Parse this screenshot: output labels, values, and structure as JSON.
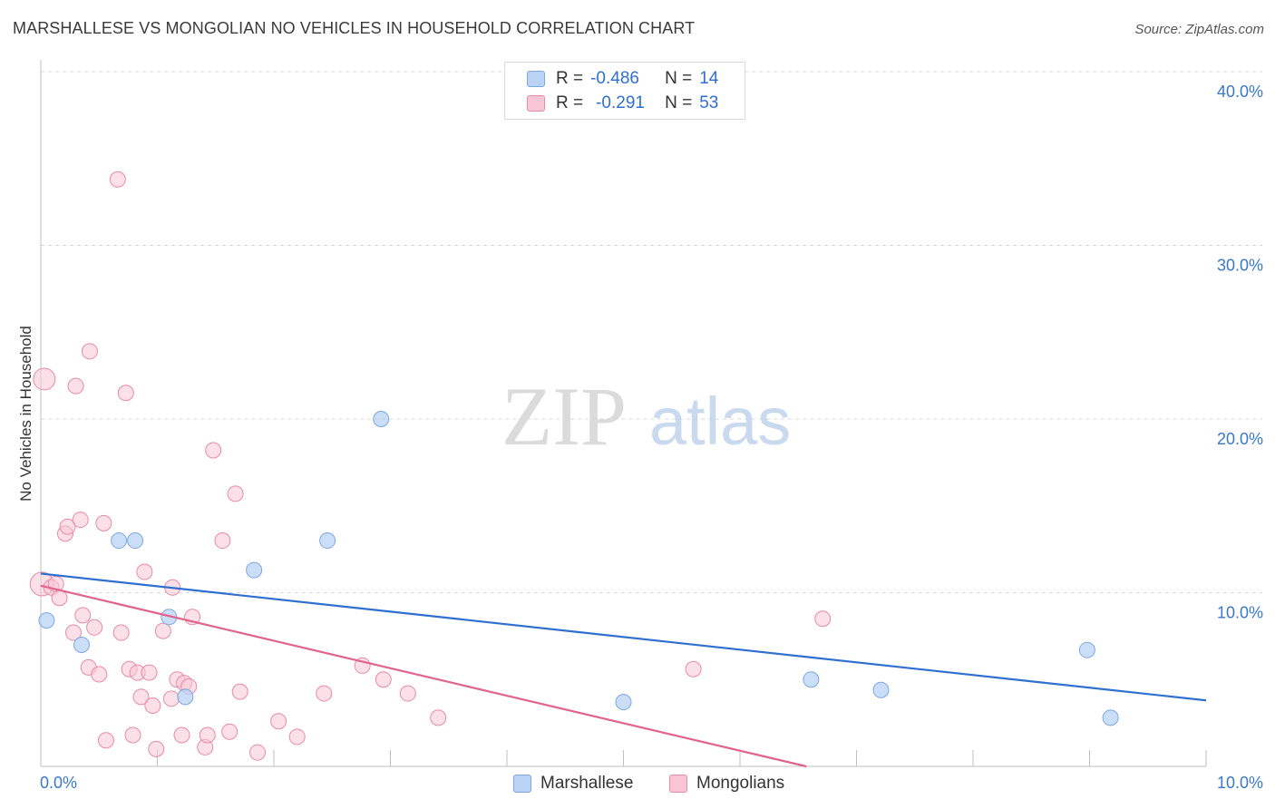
{
  "title": "MARSHALLESE VS MONGOLIAN NO VEHICLES IN HOUSEHOLD CORRELATION CHART",
  "source": "Source: ZipAtlas.com",
  "watermark": {
    "zip": "ZIP",
    "atlas": "atlas"
  },
  "legend": {
    "marshallese": {
      "r_label": "R =",
      "r_value": "-0.486",
      "n_label": "N =",
      "n_value": "14"
    },
    "mongolians": {
      "r_label": "R =",
      "r_value": "-0.291",
      "n_label": "N =",
      "n_value": "53"
    }
  },
  "bottom_legend": {
    "marshallese": "Marshallese",
    "mongolians": "Mongolians"
  },
  "colors": {
    "marshallese_fill": "#b9d3f5",
    "marshallese_stroke": "#7ea8e0",
    "marshallese_line": "#2f6fd0",
    "mongolians_fill": "#f8c6d5",
    "mongolians_stroke": "#e98aa8",
    "mongolians_line": "#e0648d",
    "tick_text": "#3a78c9",
    "grid": "#d8d8d8"
  },
  "chart_data": {
    "type": "scatter",
    "title": "MARSHALLESE VS MONGOLIAN NO VEHICLES IN HOUSEHOLD CORRELATION CHART",
    "xlabel": "",
    "ylabel": "No Vehicles in Household",
    "xlim": [
      0,
      10
    ],
    "ylim": [
      0,
      40
    ],
    "x_tick_labels": [
      "0.0%",
      "10.0%"
    ],
    "y_ticks": [
      10,
      20,
      30,
      40
    ],
    "y_tick_labels": [
      "10.0%",
      "20.0%",
      "30.0%",
      "40.0%"
    ],
    "grid": "horizontal dashed",
    "series": [
      {
        "name": "Marshallese",
        "R": -0.486,
        "N": 14,
        "points": [
          {
            "x": 0.05,
            "y": 8.4
          },
          {
            "x": 0.35,
            "y": 7.0
          },
          {
            "x": 0.67,
            "y": 13.0
          },
          {
            "x": 0.81,
            "y": 13.0
          },
          {
            "x": 1.1,
            "y": 8.6
          },
          {
            "x": 1.24,
            "y": 4.0
          },
          {
            "x": 1.83,
            "y": 11.3
          },
          {
            "x": 2.46,
            "y": 13.0
          },
          {
            "x": 2.92,
            "y": 20.0
          },
          {
            "x": 5.0,
            "y": 3.7
          },
          {
            "x": 6.61,
            "y": 5.0
          },
          {
            "x": 7.21,
            "y": 4.4
          },
          {
            "x": 8.98,
            "y": 6.7
          },
          {
            "x": 9.18,
            "y": 2.8
          }
        ],
        "trend": {
          "x": [
            0,
            10
          ],
          "y": [
            11.1,
            3.8
          ]
        }
      },
      {
        "name": "Mongolians",
        "R": -0.291,
        "N": 53,
        "points": [
          {
            "x": 0.03,
            "y": 22.3
          },
          {
            "x": 0.01,
            "y": 10.5
          },
          {
            "x": 0.09,
            "y": 10.3
          },
          {
            "x": 0.13,
            "y": 10.5
          },
          {
            "x": 0.16,
            "y": 9.7
          },
          {
            "x": 0.21,
            "y": 13.4
          },
          {
            "x": 0.23,
            "y": 13.8
          },
          {
            "x": 0.28,
            "y": 7.7
          },
          {
            "x": 0.3,
            "y": 21.9
          },
          {
            "x": 0.34,
            "y": 14.2
          },
          {
            "x": 0.36,
            "y": 8.7
          },
          {
            "x": 0.41,
            "y": 5.7
          },
          {
            "x": 0.42,
            "y": 23.9
          },
          {
            "x": 0.46,
            "y": 8.0
          },
          {
            "x": 0.5,
            "y": 5.3
          },
          {
            "x": 0.54,
            "y": 14.0
          },
          {
            "x": 0.56,
            "y": 1.5
          },
          {
            "x": 0.66,
            "y": 33.8
          },
          {
            "x": 0.69,
            "y": 7.7
          },
          {
            "x": 0.73,
            "y": 21.5
          },
          {
            "x": 0.76,
            "y": 5.6
          },
          {
            "x": 0.79,
            "y": 1.8
          },
          {
            "x": 0.83,
            "y": 5.4
          },
          {
            "x": 0.86,
            "y": 4.0
          },
          {
            "x": 0.89,
            "y": 11.2
          },
          {
            "x": 0.93,
            "y": 5.4
          },
          {
            "x": 0.96,
            "y": 3.5
          },
          {
            "x": 0.99,
            "y": 1.0
          },
          {
            "x": 1.05,
            "y": 7.8
          },
          {
            "x": 1.12,
            "y": 3.9
          },
          {
            "x": 1.13,
            "y": 10.3
          },
          {
            "x": 1.17,
            "y": 5.0
          },
          {
            "x": 1.21,
            "y": 1.8
          },
          {
            "x": 1.23,
            "y": 4.8
          },
          {
            "x": 1.27,
            "y": 4.6
          },
          {
            "x": 1.3,
            "y": 8.6
          },
          {
            "x": 1.41,
            "y": 1.1
          },
          {
            "x": 1.43,
            "y": 1.8
          },
          {
            "x": 1.48,
            "y": 18.2
          },
          {
            "x": 1.56,
            "y": 13.0
          },
          {
            "x": 1.62,
            "y": 2.0
          },
          {
            "x": 1.67,
            "y": 15.7
          },
          {
            "x": 1.71,
            "y": 4.3
          },
          {
            "x": 1.86,
            "y": 0.8
          },
          {
            "x": 2.04,
            "y": 2.6
          },
          {
            "x": 2.2,
            "y": 1.7
          },
          {
            "x": 2.43,
            "y": 4.2
          },
          {
            "x": 2.76,
            "y": 5.8
          },
          {
            "x": 2.94,
            "y": 5.0
          },
          {
            "x": 3.15,
            "y": 4.2
          },
          {
            "x": 3.41,
            "y": 2.8
          },
          {
            "x": 5.6,
            "y": 5.6
          },
          {
            "x": 6.71,
            "y": 8.5
          }
        ],
        "trend": {
          "x": [
            0,
            6.57
          ],
          "y": [
            10.4,
            0
          ]
        }
      }
    ]
  }
}
